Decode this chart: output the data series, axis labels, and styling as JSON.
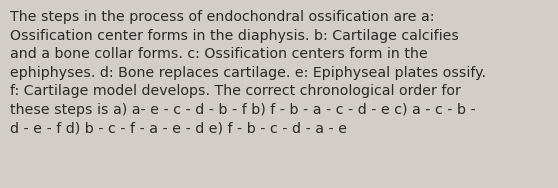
{
  "text": "The steps in the process of endochondral ossification are a:\nOssification center forms in the diaphysis. b: Cartilage calcifies\nand a bone collar forms. c: Ossification centers form in the\nephiphyses. d: Bone replaces cartilage. e: Epiphyseal plates ossify.\nf: Cartilage model develops. The correct chronological order for\nthese steps is a) a- e - c - d - b - f b) f - b - a - c - d - e c) a - c - b -\nd - e - f d) b - c - f - a - e - d e) f - b - c - d - a - e",
  "background_color": "#d2cec7",
  "text_color": "#2a2a2a",
  "font_size": 10.2,
  "linespacing": 1.42
}
